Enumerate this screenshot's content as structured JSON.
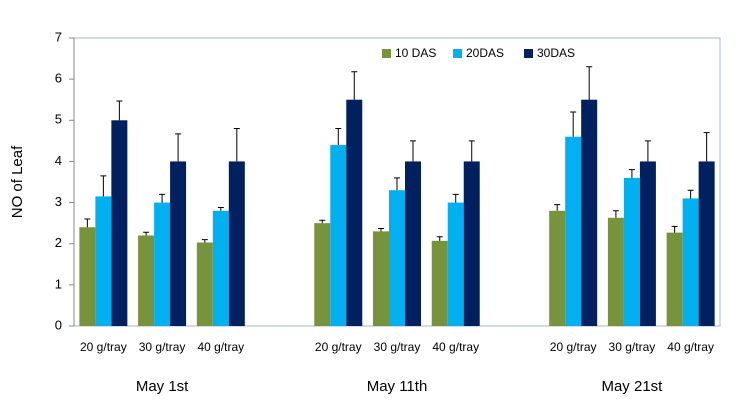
{
  "chart_data": {
    "type": "bar",
    "y_label": "NO of Leaf",
    "groups": [
      "May 1st",
      "May 11th",
      "May 21st"
    ],
    "categories": [
      "20 g/tray",
      "30 g/tray",
      "40 g/tray",
      "20 g/tray",
      "30 g/tray",
      "40 g/tray",
      "20 g/tray",
      "30 g/tray",
      "40 g/tray"
    ],
    "series": [
      {
        "name": "10 DAS",
        "color": "#77933c",
        "values": [
          2.4,
          2.2,
          2.03,
          2.5,
          2.3,
          2.07,
          2.8,
          2.63,
          2.27
        ],
        "errors": [
          0.2,
          0.08,
          0.07,
          0.07,
          0.07,
          0.1,
          0.15,
          0.17,
          0.15
        ]
      },
      {
        "name": "20DAS",
        "color": "#00b0f0",
        "values": [
          3.15,
          3.0,
          2.8,
          4.4,
          3.3,
          3.0,
          4.6,
          3.6,
          3.1
        ],
        "errors": [
          0.5,
          0.2,
          0.08,
          0.4,
          0.3,
          0.2,
          0.6,
          0.2,
          0.2
        ]
      },
      {
        "name": "30DAS",
        "color": "#002060",
        "values": [
          5.0,
          4.0,
          4.0,
          5.5,
          4.0,
          4.0,
          5.5,
          4.0,
          4.0
        ],
        "errors": [
          0.47,
          0.67,
          0.8,
          0.68,
          0.5,
          0.5,
          0.8,
          0.5,
          0.7
        ]
      }
    ],
    "ylim": [
      0,
      7
    ],
    "yticks": [
      0,
      1,
      2,
      3,
      4,
      5,
      6,
      7
    ],
    "legend": "top-right"
  }
}
